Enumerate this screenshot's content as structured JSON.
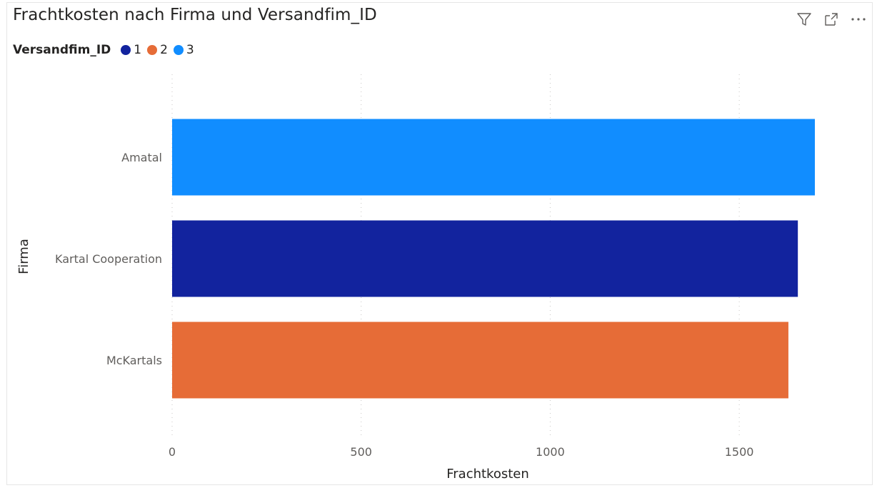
{
  "visual": {
    "title": "Frachtkosten nach Firma und Versandfim_ID",
    "header_icons": [
      "filter-icon",
      "focus-mode-icon",
      "more-options-icon"
    ]
  },
  "legend": {
    "title": "Versandfim_ID",
    "items": [
      {
        "label": "1",
        "color": "#12239E"
      },
      {
        "label": "2",
        "color": "#E66C37"
      },
      {
        "label": "3",
        "color": "#118DFF"
      }
    ]
  },
  "chart_data": {
    "type": "bar",
    "orientation": "horizontal",
    "categories": [
      "Amatal",
      "Kartal Cooperation",
      "McKartals"
    ],
    "values": [
      1700,
      1655,
      1630
    ],
    "series_id": [
      "3",
      "1",
      "2"
    ],
    "colors": [
      "#118DFF",
      "#12239E",
      "#E66C37"
    ],
    "xlabel": "Frachtkosten",
    "ylabel": "Firma",
    "xlim": [
      0,
      1700
    ],
    "xticks": [
      0,
      500,
      1000,
      1500
    ],
    "grid": "vertical dotted",
    "legend_position": "top-left"
  }
}
